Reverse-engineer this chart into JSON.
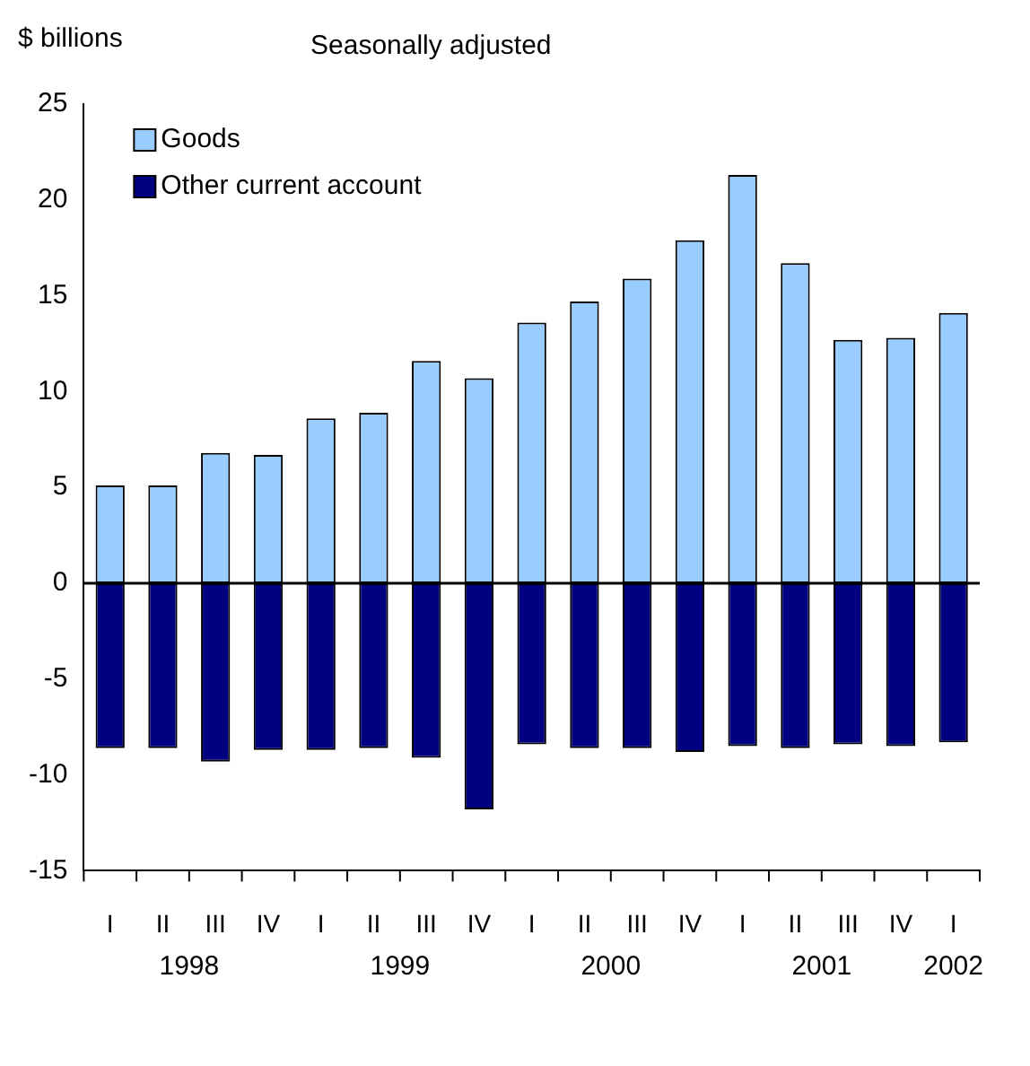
{
  "chart_data": {
    "type": "bar",
    "subtitle": "Seasonally adjusted",
    "ylabel": "$ billions",
    "categories": [
      "I",
      "II",
      "III",
      "IV",
      "I",
      "II",
      "III",
      "IV",
      "I",
      "II",
      "III",
      "IV",
      "I",
      "II",
      "III",
      "IV",
      "I"
    ],
    "annotations": [
      "1998",
      "1999",
      "2000",
      "2001",
      "2002"
    ],
    "stacked": true,
    "series": [
      {
        "name": "Goods",
        "color": "#99ccff",
        "values": [
          5.1,
          5.1,
          6.8,
          6.7,
          8.6,
          8.9,
          11.6,
          10.7,
          13.6,
          14.7,
          15.9,
          17.9,
          21.3,
          16.7,
          12.7,
          12.8,
          14.1
        ]
      },
      {
        "name": "Other current account",
        "color": "#000080",
        "values": [
          -8.6,
          -8.6,
          -9.3,
          -8.7,
          -8.7,
          -8.6,
          -9.1,
          -11.8,
          -8.4,
          -8.6,
          -8.6,
          -8.8,
          -8.5,
          -8.6,
          -8.4,
          -8.5,
          -8.3
        ]
      }
    ],
    "ylim": [
      -15,
      25
    ],
    "yticks": [
      -15,
      -10,
      -5,
      0,
      5,
      10,
      15,
      20,
      25
    ],
    "legend": "top left"
  }
}
